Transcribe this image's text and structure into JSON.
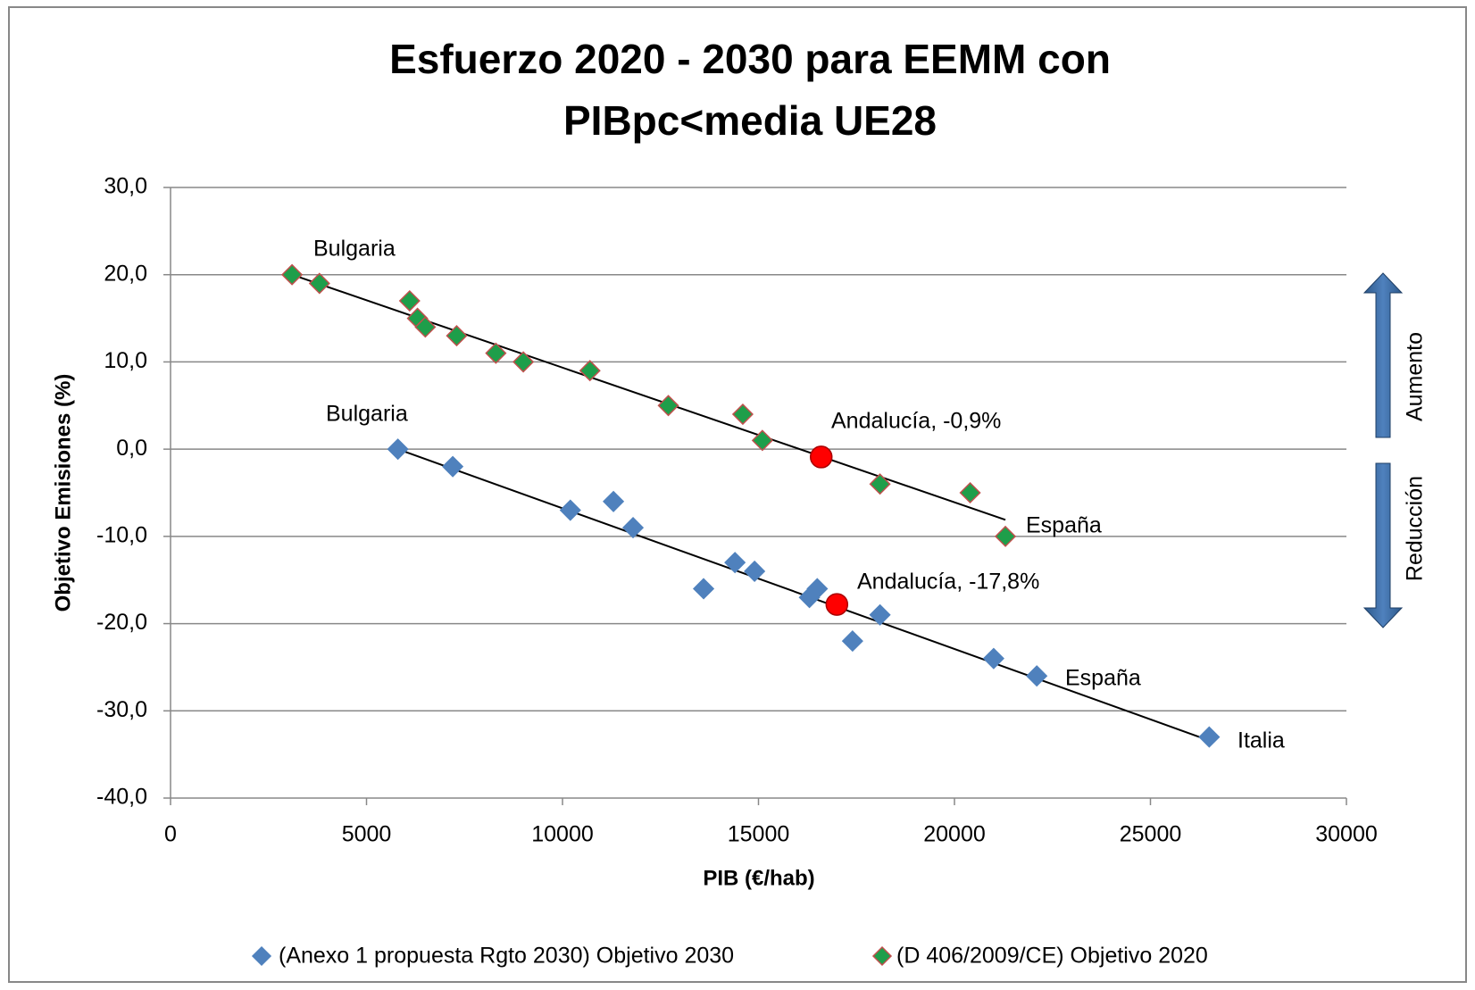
{
  "chart_data": {
    "type": "scatter",
    "title": [
      "Esfuerzo 2020 - 2030 para EEMM con",
      "PIBpc<media UE28"
    ],
    "x_label": "PIB (€/hab)",
    "y_label": "Objetivo Emisiones (%)",
    "xlim": [
      0,
      30000
    ],
    "ylim": [
      -40,
      30
    ],
    "xticks": [
      0,
      5000,
      10000,
      15000,
      20000,
      25000,
      30000
    ],
    "yticks": [
      {
        "value": -40,
        "label": "-40,0"
      },
      {
        "value": -30,
        "label": "-30,0"
      },
      {
        "value": -20,
        "label": "-20,0"
      },
      {
        "value": -10,
        "label": "-10,0"
      },
      {
        "value": 0,
        "label": "0,0"
      },
      {
        "value": 10,
        "label": "10,0"
      },
      {
        "value": 20,
        "label": "20,0"
      },
      {
        "value": 30,
        "label": "30,0"
      }
    ],
    "grid": true,
    "legend": "bottom",
    "series": [
      {
        "name": "(Anexo 1 propuesta Rgto 2030) Objetivo 2030",
        "color": "#4f81bd",
        "stroke": "#4f81bd",
        "x": [
          5800,
          7200,
          10200,
          11300,
          11800,
          13600,
          14400,
          14900,
          16300,
          16500,
          17400,
          18100,
          21000,
          22100,
          26500
        ],
        "values": [
          0,
          -2,
          -7,
          -6,
          -9,
          -16,
          -13,
          -14,
          -17,
          -16,
          -22,
          -19,
          -24,
          -26,
          -33
        ]
      },
      {
        "name": "(D 406/2009/CE) Objetivo 2020",
        "color": "#1e9e4a",
        "stroke": "#c0504d",
        "x": [
          3100,
          3800,
          6100,
          6300,
          6500,
          7300,
          8300,
          9000,
          10700,
          12700,
          14600,
          15100,
          18100,
          20400,
          21300
        ],
        "values": [
          20,
          19,
          17,
          15,
          14,
          13,
          11,
          10,
          9,
          5,
          4,
          1,
          -4,
          -5,
          -10
        ]
      }
    ],
    "trendlines": [
      {
        "x": [
          5800,
          26500
        ],
        "y": [
          0,
          -33.4
        ]
      },
      {
        "x": [
          3100,
          21300
        ],
        "y": [
          20,
          -8.1
        ]
      }
    ],
    "highlights": {
      "color": "#ff0000",
      "x": [
        16600,
        17000
      ],
      "values": [
        -0.9,
        -17.8
      ],
      "value_labels": [
        "Andalucía, -0,9%",
        "Andalucía, -17,8%"
      ]
    },
    "annotations": [
      "Bulgaria",
      "Bulgaria",
      "España",
      "España",
      "Italia"
    ],
    "side_labels": [
      "Aumento",
      "Reducción"
    ]
  }
}
